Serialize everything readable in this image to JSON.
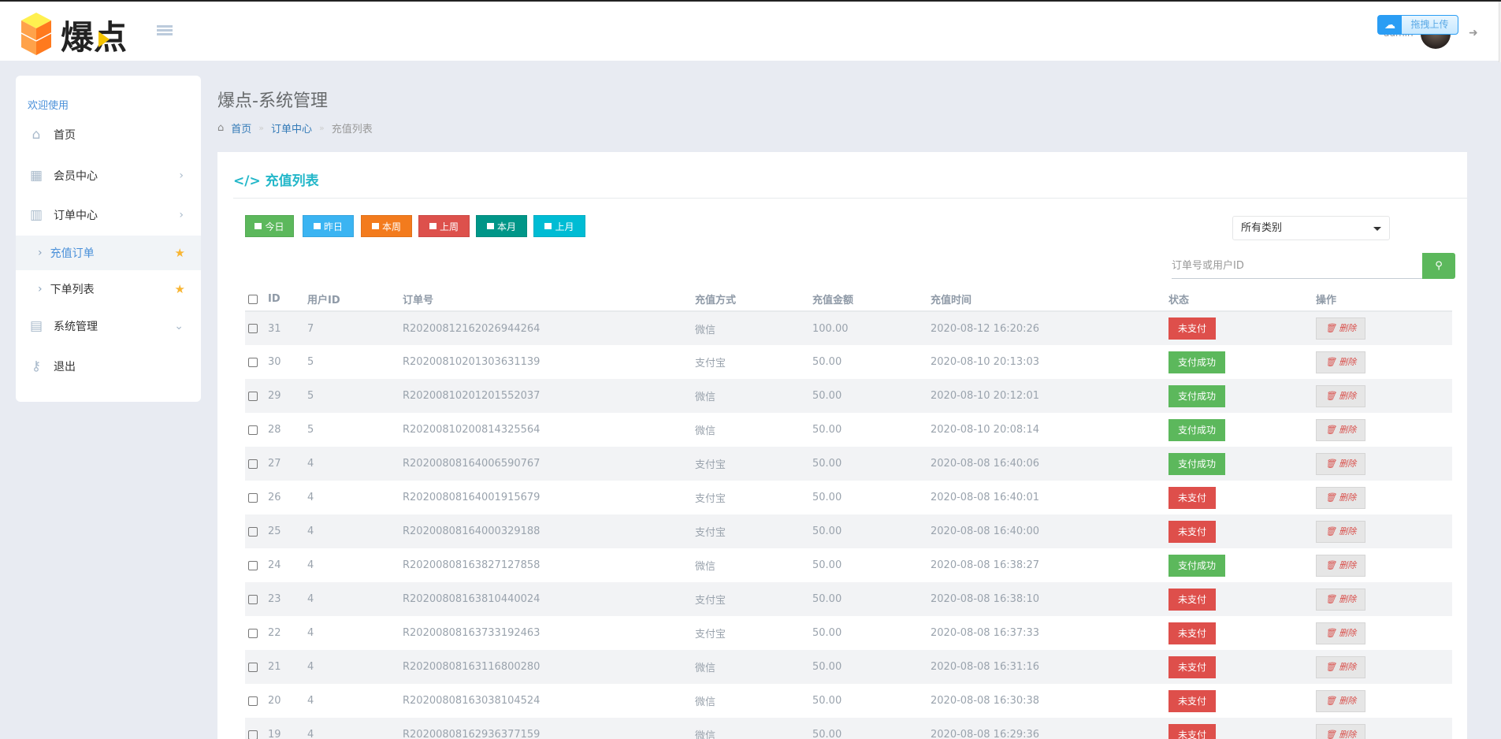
{
  "header": {
    "logo_text": "爆点",
    "upload_label": "拖拽上传",
    "username": "admin"
  },
  "sidebar": {
    "welcome": "欢迎使用",
    "items": [
      {
        "label": "首页",
        "icon": "home-icon"
      },
      {
        "label": "会员中心",
        "icon": "table-icon"
      },
      {
        "label": "订单中心",
        "icon": "bar-chart-icon"
      },
      {
        "label": "充值订单",
        "icon": "chevron-right-icon",
        "active": true
      },
      {
        "label": "下单列表",
        "icon": "chevron-right-icon"
      },
      {
        "label": "系统管理",
        "icon": "calendar-icon"
      },
      {
        "label": "退出",
        "icon": "key-icon"
      }
    ]
  },
  "page": {
    "title": "爆点-系统管理",
    "breadcrumb": [
      "首页",
      "订单中心",
      "充值列表"
    ]
  },
  "card": {
    "title": "充值列表",
    "quick_filters": [
      {
        "label": "今日",
        "color": "#5cb85c"
      },
      {
        "label": "昨日",
        "color": "#3bb4f2"
      },
      {
        "label": "本周",
        "color": "#f37b1d"
      },
      {
        "label": "上周",
        "color": "#dd514c"
      },
      {
        "label": "本月",
        "color": "#009688"
      },
      {
        "label": "上月",
        "color": "#00bcd4"
      }
    ],
    "category_select": "所有类别",
    "search_placeholder": "订单号或用户ID"
  },
  "table": {
    "columns": [
      "ID",
      "用户ID",
      "订单号",
      "充值方式",
      "充值金额",
      "充值时间",
      "状态",
      "操作"
    ],
    "delete_label": "删除",
    "rows": [
      [
        "31",
        "7",
        "R20200812162026944264",
        "微信",
        "100.00",
        "2020-08-12 16:20:26",
        "未支付"
      ],
      [
        "30",
        "5",
        "R20200810201303631139",
        "支付宝",
        "50.00",
        "2020-08-10 20:13:03",
        "支付成功"
      ],
      [
        "29",
        "5",
        "R20200810201201552037",
        "微信",
        "50.00",
        "2020-08-10 20:12:01",
        "支付成功"
      ],
      [
        "28",
        "5",
        "R20200810200814325564",
        "微信",
        "50.00",
        "2020-08-10 20:08:14",
        "支付成功"
      ],
      [
        "27",
        "4",
        "R20200808164006590767",
        "支付宝",
        "50.00",
        "2020-08-08 16:40:06",
        "支付成功"
      ],
      [
        "26",
        "4",
        "R20200808164001915679",
        "支付宝",
        "50.00",
        "2020-08-08 16:40:01",
        "未支付"
      ],
      [
        "25",
        "4",
        "R20200808164000329188",
        "支付宝",
        "50.00",
        "2020-08-08 16:40:00",
        "未支付"
      ],
      [
        "24",
        "4",
        "R20200808163827127858",
        "微信",
        "50.00",
        "2020-08-08 16:38:27",
        "支付成功"
      ],
      [
        "23",
        "4",
        "R20200808163810440024",
        "支付宝",
        "50.00",
        "2020-08-08 16:38:10",
        "未支付"
      ],
      [
        "22",
        "4",
        "R20200808163733192463",
        "支付宝",
        "50.00",
        "2020-08-08 16:37:33",
        "未支付"
      ],
      [
        "21",
        "4",
        "R20200808163116800280",
        "微信",
        "50.00",
        "2020-08-08 16:31:16",
        "未支付"
      ],
      [
        "20",
        "4",
        "R20200808163038104524",
        "微信",
        "50.00",
        "2020-08-08 16:30:38",
        "未支付"
      ],
      [
        "19",
        "4",
        "R20200808162936377159",
        "微信",
        "50.00",
        "2020-08-08 16:29:36",
        "未支付"
      ]
    ]
  }
}
